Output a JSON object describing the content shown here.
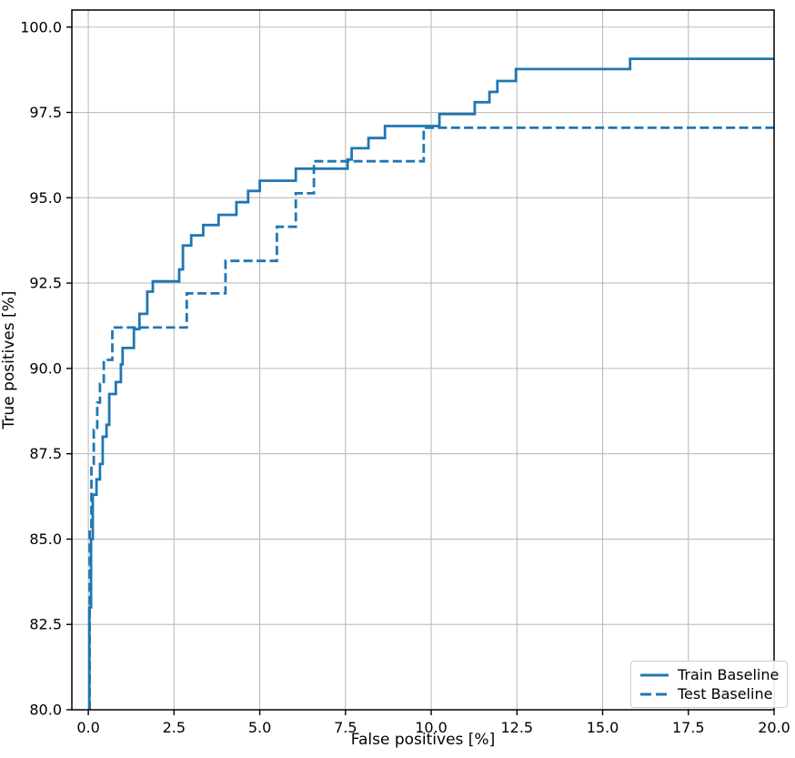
{
  "figure": {
    "background_color": "#ffffff",
    "accent_color": "#1f77b4"
  },
  "chart_data": {
    "type": "line",
    "subtype": "step-roc-curve",
    "title": "",
    "xlabel": "False positives [%]",
    "ylabel": "True positives [%]",
    "xlim": [
      -0.48,
      20.0
    ],
    "ylim": [
      80.0,
      100.5
    ],
    "xticks": [
      0.0,
      2.5,
      5.0,
      7.5,
      10.0,
      12.5,
      15.0,
      17.5,
      20.0
    ],
    "xtick_labels": [
      "0.0",
      "2.5",
      "5.0",
      "7.5",
      "10.0",
      "12.5",
      "15.0",
      "17.5",
      "20.0"
    ],
    "yticks": [
      80.0,
      82.5,
      85.0,
      87.5,
      90.0,
      92.5,
      95.0,
      97.5,
      100.0
    ],
    "ytick_labels": [
      "80.0",
      "82.5",
      "85.0",
      "87.5",
      "90.0",
      "92.5",
      "95.0",
      "97.5",
      "100.0"
    ],
    "grid": true,
    "grid_color": "#bcbcbc",
    "axis_color": "#000000",
    "legend": {
      "position": "lower right",
      "entries": [
        "Train Baseline",
        "Test Baseline"
      ]
    },
    "series": [
      {
        "name": "Train Baseline",
        "style": "solid",
        "color": "#1f77b4",
        "points": [
          [
            0.03,
            80.0
          ],
          [
            0.03,
            83.0
          ],
          [
            0.08,
            83.0
          ],
          [
            0.08,
            85.0
          ],
          [
            0.13,
            85.0
          ],
          [
            0.13,
            86.3
          ],
          [
            0.24,
            86.3
          ],
          [
            0.24,
            86.75
          ],
          [
            0.34,
            86.75
          ],
          [
            0.34,
            87.2
          ],
          [
            0.42,
            87.2
          ],
          [
            0.42,
            88.0
          ],
          [
            0.53,
            88.0
          ],
          [
            0.53,
            88.35
          ],
          [
            0.61,
            88.35
          ],
          [
            0.61,
            89.25
          ],
          [
            0.8,
            89.25
          ],
          [
            0.8,
            89.6
          ],
          [
            0.95,
            89.6
          ],
          [
            0.95,
            90.12
          ],
          [
            1.0,
            90.12
          ],
          [
            1.0,
            90.6
          ],
          [
            1.33,
            90.6
          ],
          [
            1.33,
            91.15
          ],
          [
            1.49,
            91.15
          ],
          [
            1.49,
            91.6
          ],
          [
            1.72,
            91.6
          ],
          [
            1.72,
            92.25
          ],
          [
            1.88,
            92.25
          ],
          [
            1.88,
            92.55
          ],
          [
            2.65,
            92.55
          ],
          [
            2.65,
            92.9
          ],
          [
            2.76,
            92.9
          ],
          [
            2.76,
            93.6
          ],
          [
            3.0,
            93.6
          ],
          [
            3.0,
            93.9
          ],
          [
            3.35,
            93.9
          ],
          [
            3.35,
            94.2
          ],
          [
            3.8,
            94.2
          ],
          [
            3.8,
            94.5
          ],
          [
            4.32,
            94.5
          ],
          [
            4.32,
            94.87
          ],
          [
            4.66,
            94.87
          ],
          [
            4.66,
            95.2
          ],
          [
            5.0,
            95.2
          ],
          [
            5.0,
            95.5
          ],
          [
            6.05,
            95.5
          ],
          [
            6.05,
            95.85
          ],
          [
            7.56,
            95.85
          ],
          [
            7.56,
            96.12
          ],
          [
            7.68,
            96.12
          ],
          [
            7.68,
            96.45
          ],
          [
            8.17,
            96.45
          ],
          [
            8.17,
            96.75
          ],
          [
            8.65,
            96.75
          ],
          [
            8.65,
            97.1
          ],
          [
            10.24,
            97.1
          ],
          [
            10.24,
            97.45
          ],
          [
            11.27,
            97.45
          ],
          [
            11.27,
            97.8
          ],
          [
            11.7,
            97.8
          ],
          [
            11.7,
            98.1
          ],
          [
            11.93,
            98.1
          ],
          [
            11.93,
            98.42
          ],
          [
            12.47,
            98.42
          ],
          [
            12.47,
            98.77
          ],
          [
            15.8,
            98.77
          ],
          [
            15.8,
            99.07
          ],
          [
            20.0,
            99.07
          ]
        ]
      },
      {
        "name": "Test Baseline",
        "style": "dashed",
        "color": "#1f77b4",
        "points": [
          [
            0.04,
            80.0
          ],
          [
            0.04,
            85.3
          ],
          [
            0.09,
            85.3
          ],
          [
            0.09,
            87.2
          ],
          [
            0.16,
            87.2
          ],
          [
            0.16,
            88.2
          ],
          [
            0.26,
            88.2
          ],
          [
            0.26,
            89.0
          ],
          [
            0.34,
            89.0
          ],
          [
            0.34,
            89.55
          ],
          [
            0.45,
            89.55
          ],
          [
            0.45,
            90.25
          ],
          [
            0.7,
            90.25
          ],
          [
            0.7,
            91.2
          ],
          [
            2.87,
            91.2
          ],
          [
            2.87,
            92.2
          ],
          [
            4.0,
            92.2
          ],
          [
            4.0,
            93.15
          ],
          [
            5.5,
            93.15
          ],
          [
            5.5,
            94.15
          ],
          [
            6.05,
            94.15
          ],
          [
            6.05,
            95.13
          ],
          [
            6.58,
            95.13
          ],
          [
            6.58,
            96.07
          ],
          [
            9.78,
            96.07
          ],
          [
            9.78,
            97.05
          ],
          [
            20.0,
            97.05
          ]
        ]
      }
    ]
  }
}
